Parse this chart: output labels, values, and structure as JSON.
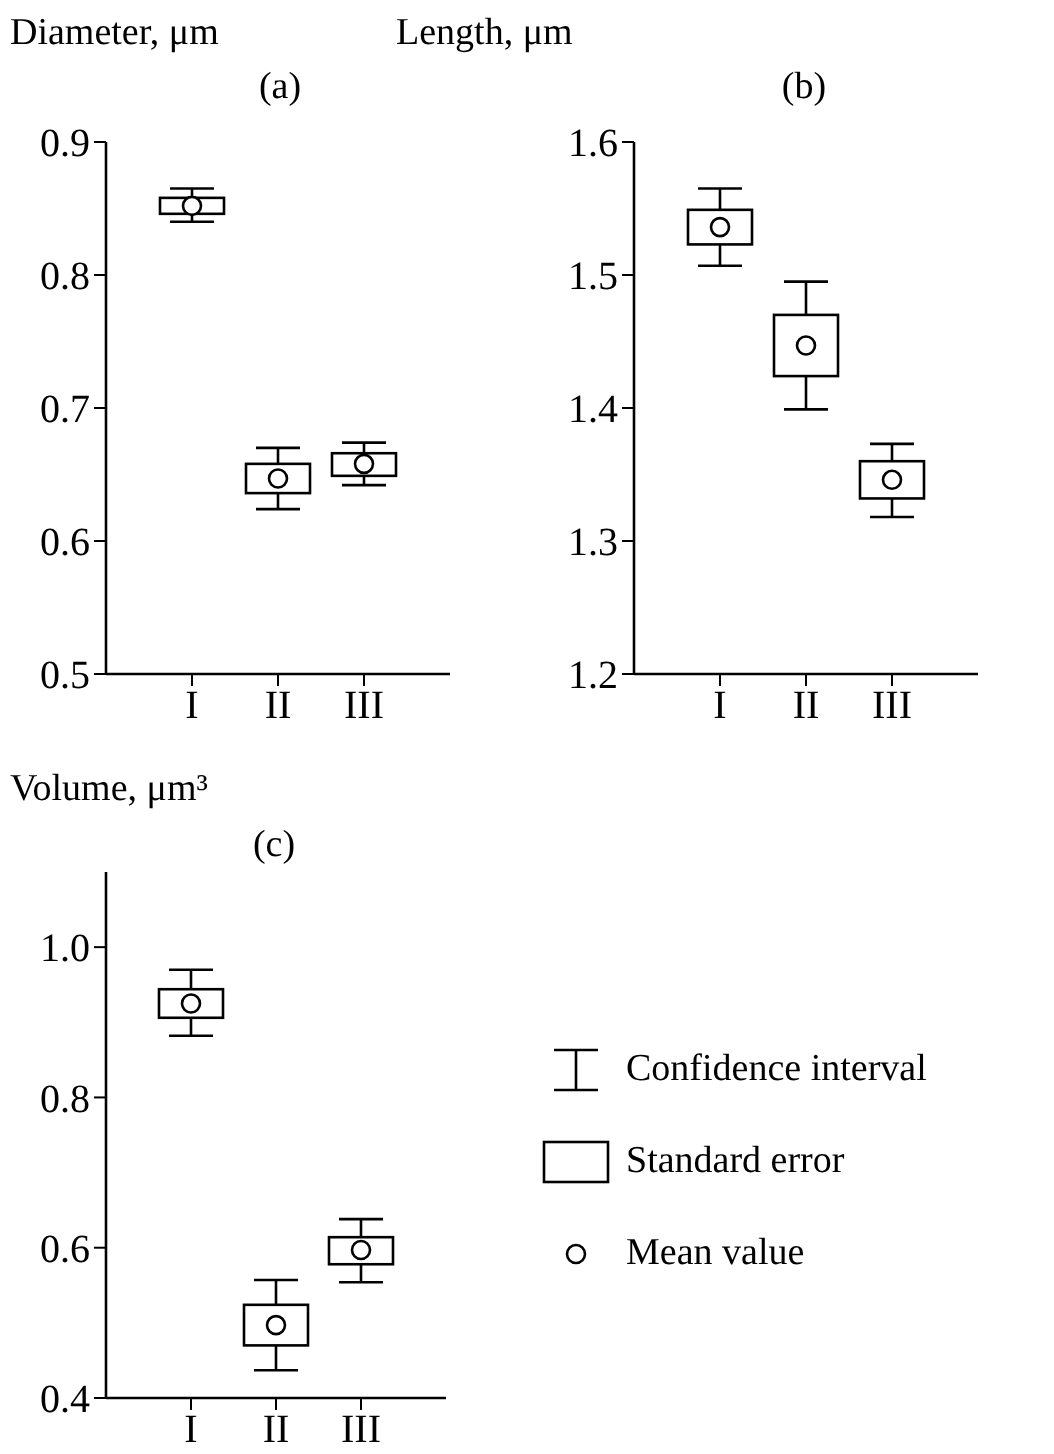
{
  "chart_data": [
    {
      "type": "box",
      "title": "(a)",
      "ylabel": "Diameter, μm",
      "categories": [
        "I",
        "II",
        "III"
      ],
      "ylim": [
        0.5,
        0.9
      ],
      "yticks": [
        0.5,
        0.6,
        0.7,
        0.8,
        0.9
      ],
      "boxes": [
        {
          "low": 0.84,
          "q1": 0.846,
          "q3": 0.858,
          "high": 0.865,
          "mean": 0.852
        },
        {
          "low": 0.624,
          "q1": 0.636,
          "q3": 0.658,
          "high": 0.67,
          "mean": 0.647
        },
        {
          "low": 0.642,
          "q1": 0.649,
          "q3": 0.666,
          "high": 0.674,
          "mean": 0.658
        }
      ]
    },
    {
      "type": "box",
      "title": "(b)",
      "ylabel": "Length, μm",
      "categories": [
        "I",
        "II",
        "III"
      ],
      "ylim": [
        1.2,
        1.6
      ],
      "yticks": [
        1.2,
        1.3,
        1.4,
        1.5,
        1.6
      ],
      "boxes": [
        {
          "low": 1.507,
          "q1": 1.523,
          "q3": 1.549,
          "high": 1.565,
          "mean": 1.536
        },
        {
          "low": 1.399,
          "q1": 1.424,
          "q3": 1.47,
          "high": 1.495,
          "mean": 1.447
        },
        {
          "low": 1.318,
          "q1": 1.332,
          "q3": 1.36,
          "high": 1.373,
          "mean": 1.346
        }
      ]
    },
    {
      "type": "box",
      "title": "(c)",
      "ylabel": "Volume, μm³",
      "categories": [
        "I",
        "II",
        "III"
      ],
      "ylim": [
        0.4,
        1.1
      ],
      "yticks": [
        0.4,
        0.6,
        0.8,
        {
          "value": 1.0,
          "label": "1.0"
        }
      ],
      "boxes": [
        {
          "low": 0.882,
          "q1": 0.906,
          "q3": 0.944,
          "high": 0.97,
          "mean": 0.925
        },
        {
          "low": 0.437,
          "q1": 0.47,
          "q3": 0.524,
          "high": 0.557,
          "mean": 0.497
        },
        {
          "low": 0.554,
          "q1": 0.578,
          "q3": 0.614,
          "high": 0.638,
          "mean": 0.597
        }
      ],
      "annotations": [
        "Confidence interval",
        "Standard error",
        "Mean value"
      ]
    }
  ]
}
